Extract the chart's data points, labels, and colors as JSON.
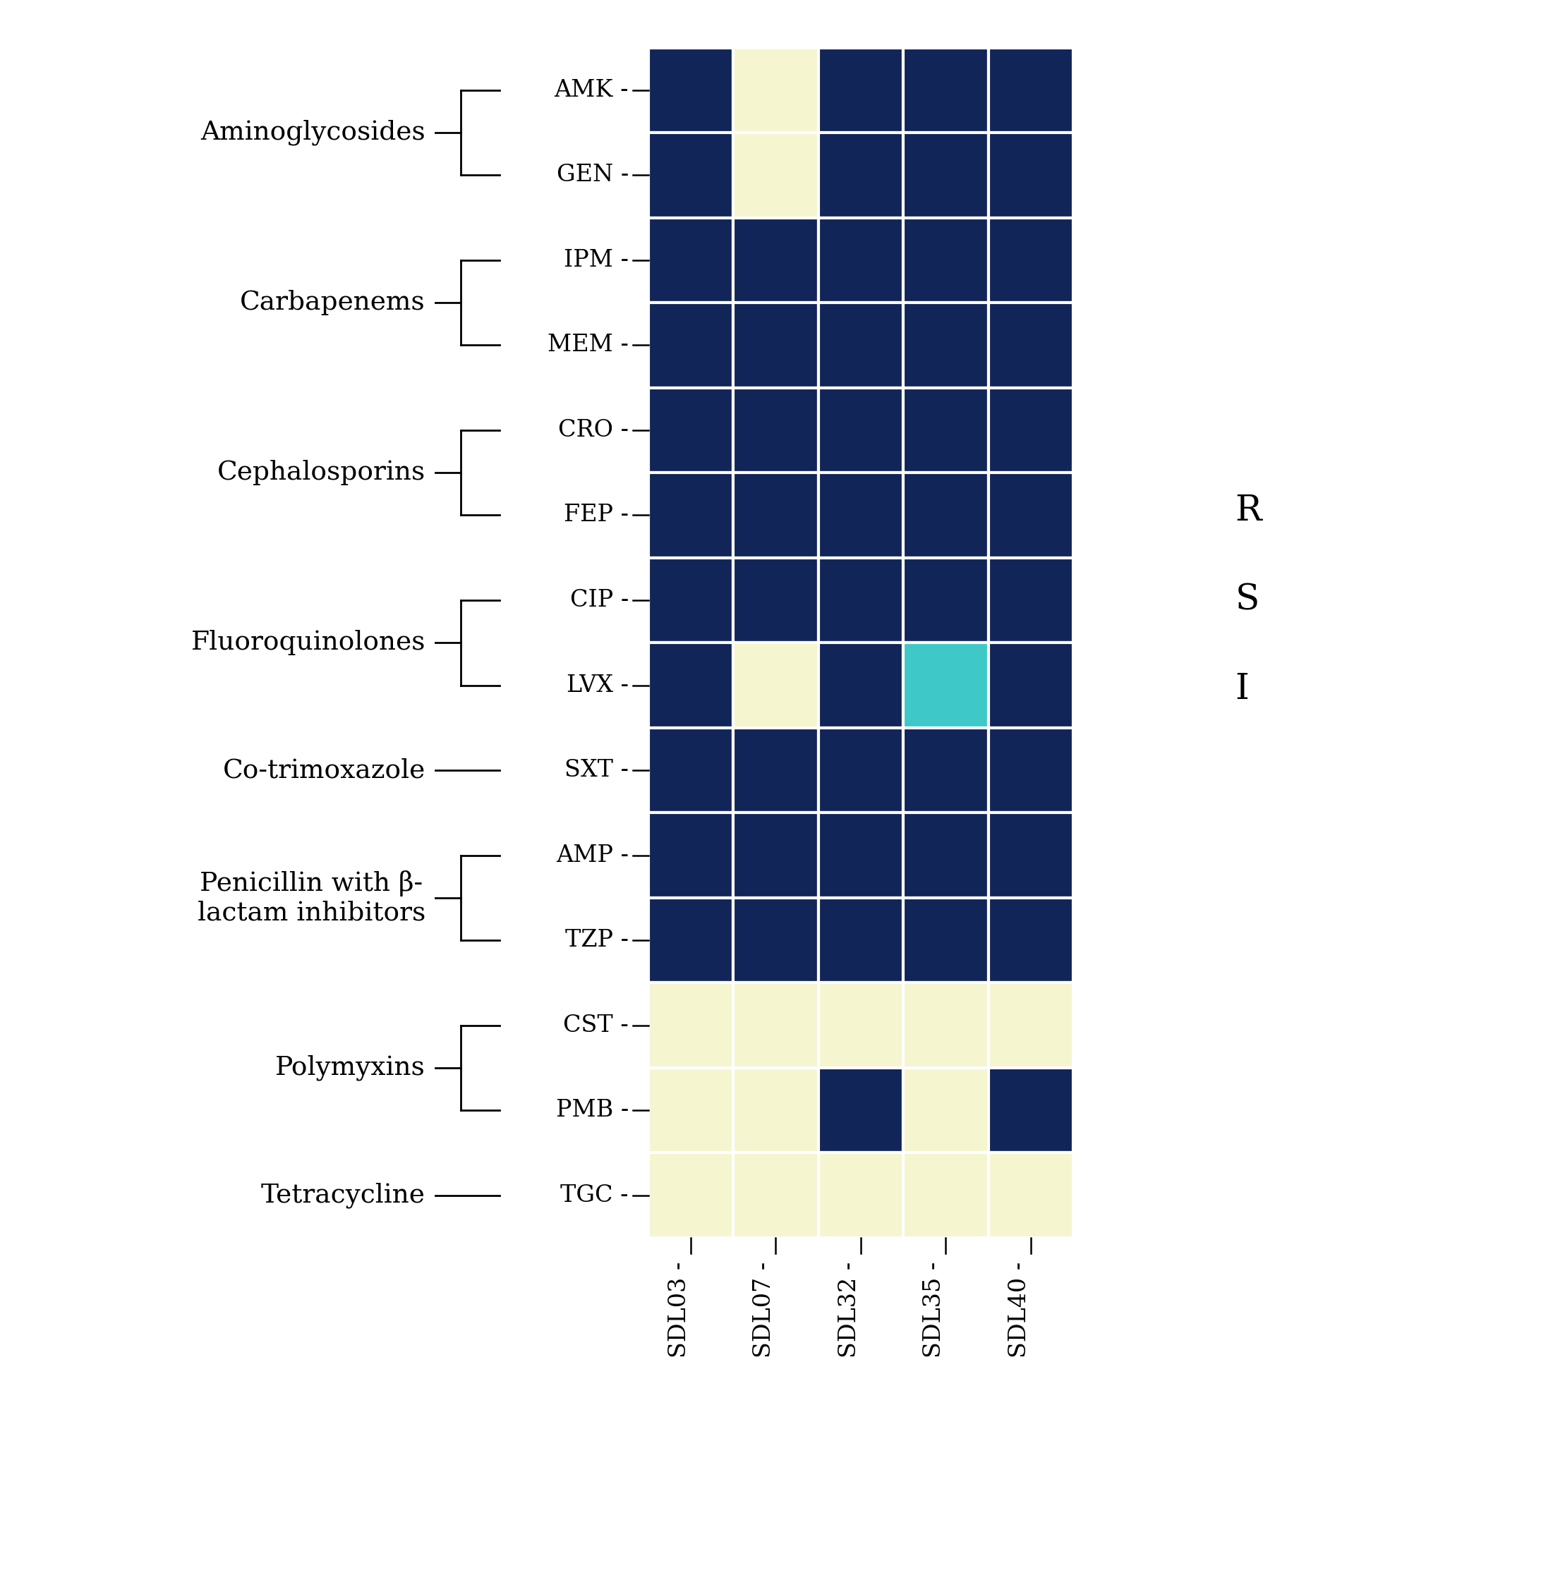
{
  "strains": [
    "SDL03",
    "SDL07",
    "SDL32",
    "SDL35",
    "SDL40"
  ],
  "antibiotics": [
    "AMK",
    "GEN",
    "IPM",
    "MEM",
    "CRO",
    "FEP",
    "CIP",
    "LVX",
    "SXT",
    "AMP",
    "TZP",
    "CST",
    "PMB",
    "TGC"
  ],
  "heatmap": [
    [
      "R",
      "S",
      "R",
      "R",
      "R"
    ],
    [
      "R",
      "S",
      "R",
      "R",
      "R"
    ],
    [
      "R",
      "R",
      "R",
      "R",
      "R"
    ],
    [
      "R",
      "R",
      "R",
      "R",
      "R"
    ],
    [
      "R",
      "R",
      "R",
      "R",
      "R"
    ],
    [
      "R",
      "R",
      "R",
      "R",
      "R"
    ],
    [
      "R",
      "R",
      "R",
      "R",
      "R"
    ],
    [
      "R",
      "S",
      "R",
      "I",
      "R"
    ],
    [
      "R",
      "R",
      "R",
      "R",
      "R"
    ],
    [
      "R",
      "R",
      "R",
      "R",
      "R"
    ],
    [
      "R",
      "R",
      "R",
      "R",
      "R"
    ],
    [
      "S",
      "S",
      "S",
      "S",
      "S"
    ],
    [
      "S",
      "S",
      "R",
      "S",
      "R"
    ],
    [
      "S",
      "S",
      "S",
      "S",
      "S"
    ]
  ],
  "color_map": {
    "R": "#122558",
    "S": "#f5f5d0",
    "I": "#3ec8c8"
  },
  "drug_classes": [
    {
      "name": "Aminoglycosides",
      "drugs": [
        "AMK",
        "GEN"
      ],
      "bracket": true
    },
    {
      "name": "Carbapenems",
      "drugs": [
        "IPM",
        "MEM"
      ],
      "bracket": true
    },
    {
      "name": "Cephalosporins",
      "drugs": [
        "CRO",
        "FEP"
      ],
      "bracket": true
    },
    {
      "name": "Fluoroquinolones",
      "drugs": [
        "CIP",
        "LVX"
      ],
      "bracket": true
    },
    {
      "name": "Co-trimoxazole",
      "drugs": [
        "SXT"
      ],
      "bracket": false
    },
    {
      "name": "Penicillin with β-\nlactam inhibitors",
      "drugs": [
        "AMP",
        "TZP"
      ],
      "bracket": true
    },
    {
      "name": "Polymyxins",
      "drugs": [
        "CST",
        "PMB"
      ],
      "bracket": true
    },
    {
      "name": "Tetracycline",
      "drugs": [
        "TGC"
      ],
      "bracket": false
    }
  ],
  "legend_labels": [
    "R",
    "S",
    "I"
  ],
  "legend_colors": [
    "#122558",
    "#f5f5d0",
    "#3ec8c8"
  ],
  "background_color": "#ffffff",
  "cell_linewidth": 3.0,
  "cell_linecolor": "#ffffff"
}
